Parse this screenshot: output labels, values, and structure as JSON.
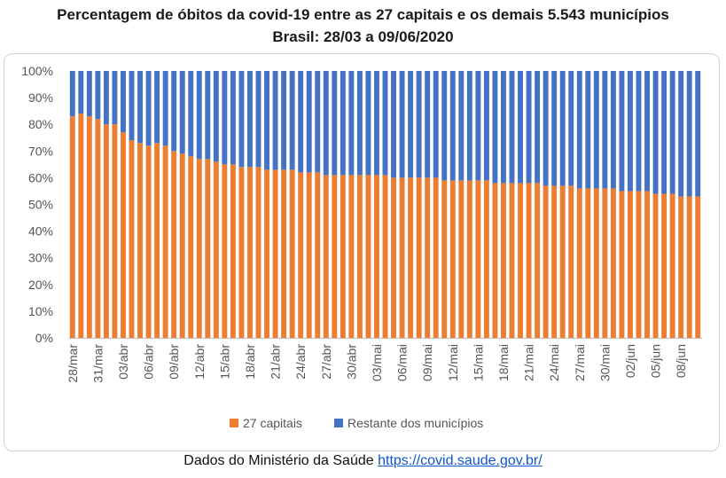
{
  "title_line1": "Percentagem de óbitos da covid-19 entre as 27 capitais e os demais 5.543 municípios",
  "title_line2": "Brasil: 28/03 a 09/06/2020",
  "footer": {
    "text": "Dados do Ministério da Saúde",
    "link": "https://covid.saude.gov.br/"
  },
  "colors": {
    "capitais": "#ED7D31",
    "restante": "#4472C4"
  },
  "chart_data": {
    "type": "bar",
    "stacked": true,
    "percent_stacked": true,
    "title": "Percentagem de óbitos da covid-19 entre as 27 capitais e os demais 5.543 municípios",
    "subtitle": "Brasil: 28/03 a 09/06/2020",
    "ylim": [
      0,
      100
    ],
    "yticks": [
      "0%",
      "10%",
      "20%",
      "30%",
      "40%",
      "50%",
      "60%",
      "70%",
      "80%",
      "90%",
      "100%"
    ],
    "grid": false,
    "legend": "bottom",
    "x_tick_labels": [
      "28/mar",
      "31/mar",
      "03/abr",
      "06/abr",
      "09/abr",
      "12/abr",
      "15/abr",
      "18/abr",
      "21/abr",
      "24/abr",
      "27/abr",
      "30/abr",
      "03/mai",
      "06/mai",
      "09/mai",
      "12/mai",
      "15/mai",
      "18/mai",
      "21/mai",
      "24/mai",
      "27/mai",
      "30/mai",
      "02/jun",
      "05/jun",
      "08/jun"
    ],
    "series": [
      {
        "name": "27 capitais",
        "values": [
          83,
          84,
          83,
          82,
          80,
          80,
          77,
          74,
          73,
          72,
          73,
          72,
          70,
          69,
          68,
          67,
          67,
          66,
          65,
          65,
          64,
          64,
          64,
          63,
          63,
          63,
          63,
          62,
          62,
          62,
          61,
          61,
          61,
          61,
          61,
          61,
          61,
          61,
          60,
          60,
          60,
          60,
          60,
          60,
          59,
          59,
          59,
          59,
          59,
          59,
          58,
          58,
          58,
          58,
          58,
          58,
          57,
          57,
          57,
          57,
          56,
          56,
          56,
          56,
          56,
          55,
          55,
          55,
          55,
          54,
          54,
          54,
          53,
          53,
          53
        ]
      },
      {
        "name": "Restante dos municípios",
        "values": [
          17,
          16,
          17,
          18,
          20,
          20,
          23,
          26,
          27,
          28,
          27,
          28,
          30,
          31,
          32,
          33,
          33,
          34,
          35,
          35,
          36,
          36,
          36,
          37,
          37,
          37,
          37,
          38,
          38,
          38,
          39,
          39,
          39,
          39,
          39,
          39,
          39,
          39,
          40,
          40,
          40,
          40,
          40,
          40,
          41,
          41,
          41,
          41,
          41,
          41,
          42,
          42,
          42,
          42,
          42,
          42,
          43,
          43,
          43,
          43,
          44,
          44,
          44,
          44,
          44,
          45,
          45,
          45,
          45,
          46,
          46,
          46,
          47,
          47,
          47
        ]
      }
    ]
  }
}
